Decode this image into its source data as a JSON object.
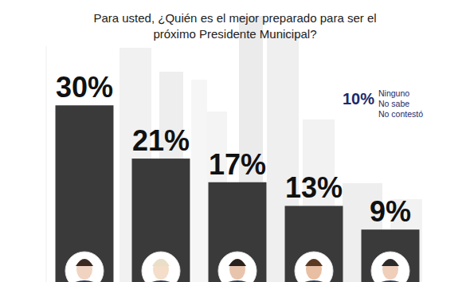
{
  "chart_data": {
    "type": "bar",
    "title": [
      "Para usted, ¿Quién es el mejor preparado para ser el",
      "próximo Presidente Municipal?"
    ],
    "categories": [
      null,
      null,
      null,
      null,
      null
    ],
    "values": [
      30,
      21,
      17,
      13,
      9
    ],
    "value_labels": [
      "30%",
      "21%",
      "17%",
      "13%",
      "9%"
    ],
    "color": "#3a3a3a",
    "ylim": [
      0,
      40
    ],
    "yticks": [],
    "tick_labels": false,
    "data_labels": true,
    "grid": false,
    "annotation": {
      "label": "10%",
      "text": [
        "Ninguno",
        "No sabe",
        "No contestó"
      ]
    }
  }
}
